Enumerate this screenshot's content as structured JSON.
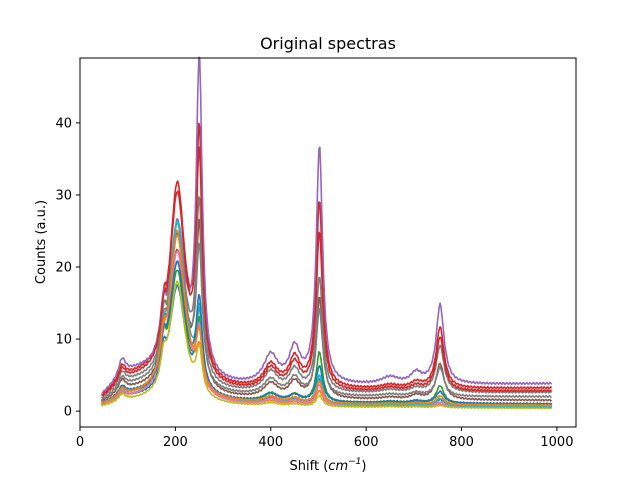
{
  "chart_data": {
    "type": "line",
    "title": "Original spectras",
    "xlabel_text": "Shift (",
    "xlabel_unit": "cm",
    "xlabel_exp": "−1",
    "xlabel_close": ")",
    "ylabel": "Counts (a.u.)",
    "xlim": [
      0,
      1040
    ],
    "ylim": [
      -2.2,
      49
    ],
    "x_ticks": [
      0,
      200,
      400,
      600,
      800,
      1000
    ],
    "x_tick_labels": [
      "0",
      "200",
      "400",
      "600",
      "800",
      "1000"
    ],
    "y_ticks": [
      0,
      10,
      20,
      30,
      40
    ],
    "y_tick_labels": [
      "0",
      "10",
      "20",
      "30",
      "40"
    ],
    "grid": false,
    "legend": false,
    "x_range": [
      45,
      990
    ],
    "peak_positions": [
      88,
      175,
      204,
      250,
      400,
      450,
      502,
      650,
      705,
      755
    ],
    "series": [
      {
        "color": "#1f77b4",
        "base": 1.0,
        "tail": 0.7,
        "peaks": [
          1.0,
          3.5,
          16,
          11,
          0.8,
          0.6,
          3.5,
          0.1,
          0.2,
          0.8
        ]
      },
      {
        "color": "#ff7f0e",
        "base": 0.8,
        "tail": 0.6,
        "peaks": [
          0.8,
          3.2,
          24,
          5,
          0.5,
          0.4,
          2.0,
          0.1,
          0.1,
          0.3
        ]
      },
      {
        "color": "#2ca02c",
        "base": 1.2,
        "tail": 0.9,
        "peaks": [
          1.2,
          4.0,
          18,
          9,
          1.2,
          1.0,
          7.0,
          0.2,
          0.3,
          2.5
        ]
      },
      {
        "color": "#d62728",
        "base": 2.6,
        "tail": 3.2,
        "peaks": [
          1.8,
          4.0,
          28,
          33,
          3.2,
          4.0,
          26,
          0.5,
          0.8,
          8.5
        ]
      },
      {
        "color": "#9467bd",
        "base": 3.0,
        "tail": 3.8,
        "peaks": [
          2.2,
          5.0,
          22,
          43,
          4.0,
          4.8,
          33,
          1.0,
          1.5,
          11
        ]
      },
      {
        "color": "#8c564b",
        "base": 1.6,
        "tail": 1.5,
        "peaks": [
          1.5,
          4.5,
          20,
          22,
          2.0,
          2.2,
          14,
          0.3,
          0.6,
          5.0
        ]
      },
      {
        "color": "#e377c2",
        "base": 0.9,
        "tail": 0.5,
        "peaks": [
          1.0,
          3.4,
          21,
          8,
          0.7,
          0.6,
          2.8,
          0.1,
          0.2,
          0.6
        ]
      },
      {
        "color": "#7f7f7f",
        "base": 2.2,
        "tail": 2.6,
        "peaks": [
          1.6,
          4.2,
          23,
          24,
          2.8,
          3.0,
          16,
          0.4,
          0.6,
          6.5
        ]
      },
      {
        "color": "#bcbd22",
        "base": 0.7,
        "tail": 0.4,
        "peaks": [
          0.9,
          3.0,
          17,
          6,
          0.4,
          0.3,
          1.5,
          0.1,
          0.1,
          0.3
        ]
      },
      {
        "color": "#17becf",
        "base": 1.0,
        "tail": 0.6,
        "peaks": [
          1.0,
          3.6,
          25,
          10,
          0.9,
          0.7,
          4.0,
          0.1,
          0.2,
          1.0
        ]
      },
      {
        "color": "#d62728",
        "base": 2.4,
        "tail": 2.8,
        "peaks": [
          1.7,
          3.8,
          27,
          30,
          3.0,
          3.6,
          22,
          0.5,
          0.7,
          7.5
        ]
      },
      {
        "color": "#1f77b4",
        "base": 1.3,
        "tail": 1.0,
        "peaks": [
          1.1,
          3.8,
          19,
          12,
          1.0,
          0.9,
          5.0,
          0.2,
          0.3,
          1.6
        ]
      },
      {
        "color": "#7f7f7f",
        "base": 1.9,
        "tail": 2.0,
        "peaks": [
          1.4,
          4.0,
          22,
          18,
          2.2,
          2.4,
          12,
          0.3,
          0.5,
          4.0
        ]
      },
      {
        "color": "#ff7f0e",
        "base": 1.1,
        "tail": 0.8,
        "peaks": [
          1.0,
          3.6,
          23,
          7,
          0.8,
          0.7,
          3.0,
          0.1,
          0.2,
          1.2
        ]
      }
    ]
  }
}
